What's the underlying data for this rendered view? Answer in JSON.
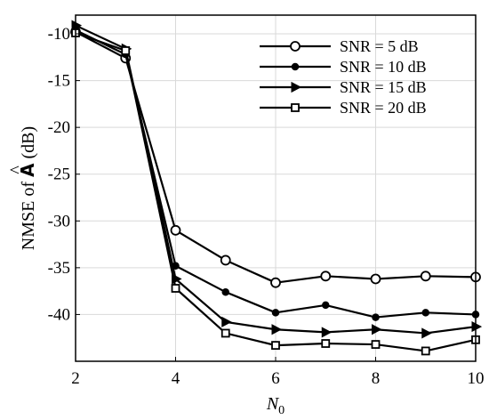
{
  "chart_data": {
    "type": "line",
    "x": [
      2,
      3,
      4,
      5,
      6,
      7,
      8,
      9,
      10
    ],
    "xlim": [
      2,
      10
    ],
    "ylim": [
      -45,
      -8
    ],
    "xticks": [
      2,
      4,
      6,
      8,
      10
    ],
    "yticks": [
      -10,
      -15,
      -20,
      -25,
      -30,
      -35,
      -40
    ],
    "xlabel": "N",
    "xlabel_sub": "0",
    "ylabel_prefix": "NMSE of ",
    "ylabel_symbol": "A",
    "ylabel_accent": "^",
    "ylabel_suffix": " (dB)",
    "grid": true,
    "legend_position": "top-right",
    "series": [
      {
        "name": "SNR = 5 dB",
        "marker": "circle",
        "values": [
          -9.8,
          -12.6,
          -31.0,
          -34.2,
          -36.6,
          -35.9,
          -36.2,
          -35.9,
          -36.0
        ]
      },
      {
        "name": "SNR = 10 dB",
        "marker": "dot",
        "values": [
          -9.6,
          -12.2,
          -34.8,
          -37.6,
          -39.8,
          -39.0,
          -40.3,
          -39.8,
          -40.0
        ]
      },
      {
        "name": "SNR = 15 dB",
        "marker": "triangle-right",
        "values": [
          -9.1,
          -11.6,
          -36.2,
          -40.8,
          -41.6,
          -41.9,
          -41.6,
          -42.0,
          -41.3
        ]
      },
      {
        "name": "SNR = 20 dB",
        "marker": "square",
        "values": [
          -9.9,
          -11.8,
          -37.2,
          -42.0,
          -43.3,
          -43.1,
          -43.2,
          -43.9,
          -42.7
        ]
      }
    ],
    "colors": {
      "line": "#000000",
      "grid": "#d9d9d9",
      "background": "#ffffff"
    }
  }
}
